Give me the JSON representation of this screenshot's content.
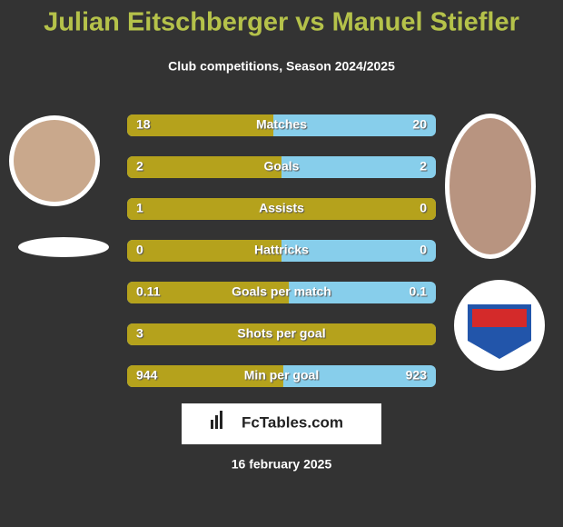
{
  "header": {
    "title": "Julian Eitschberger vs Manuel Stiefler",
    "subtitle": "Club competitions, Season 2024/2025"
  },
  "rows": [
    {
      "label": "Matches",
      "left": 18,
      "right": 20
    },
    {
      "label": "Goals",
      "left": 2,
      "right": 2
    },
    {
      "label": "Assists",
      "left": 1,
      "right": 0
    },
    {
      "label": "Hattricks",
      "left": 0,
      "right": 0
    },
    {
      "label": "Goals per match",
      "left": 0.11,
      "right": 0.1
    },
    {
      "label": "Shots per goal",
      "left": 3,
      "right": null
    },
    {
      "label": "Min per goal",
      "left": 944,
      "right": 923
    }
  ],
  "footer": {
    "brand": "FcTables.com",
    "date": "16 february 2025"
  }
}
